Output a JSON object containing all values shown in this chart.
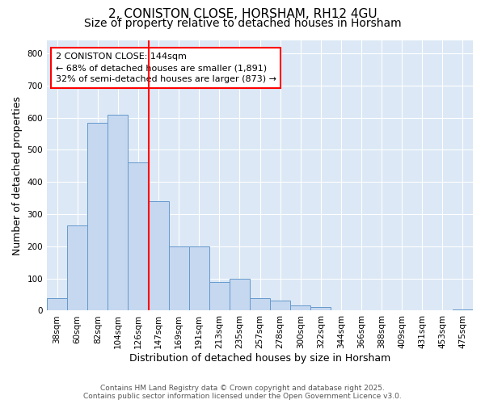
{
  "title_line1": "2, CONISTON CLOSE, HORSHAM, RH12 4GU",
  "title_line2": "Size of property relative to detached houses in Horsham",
  "xlabel": "Distribution of detached houses by size in Horsham",
  "ylabel": "Number of detached properties",
  "categories": [
    "38sqm",
    "60sqm",
    "82sqm",
    "104sqm",
    "126sqm",
    "147sqm",
    "169sqm",
    "191sqm",
    "213sqm",
    "235sqm",
    "257sqm",
    "278sqm",
    "300sqm",
    "322sqm",
    "344sqm",
    "366sqm",
    "388sqm",
    "409sqm",
    "431sqm",
    "453sqm",
    "475sqm"
  ],
  "values": [
    38,
    265,
    585,
    610,
    460,
    340,
    200,
    200,
    90,
    100,
    38,
    32,
    15,
    10,
    0,
    0,
    0,
    0,
    0,
    0,
    3
  ],
  "bar_color": "#c5d8f0",
  "bar_edge_color": "#6699cc",
  "vline_x_index": 5,
  "vline_color": "red",
  "annotation_text": "2 CONISTON CLOSE: 144sqm\n← 68% of detached houses are smaller (1,891)\n32% of semi-detached houses are larger (873) →",
  "annotation_box_color": "white",
  "annotation_box_edge_color": "red",
  "ylim": [
    0,
    840
  ],
  "yticks": [
    0,
    100,
    200,
    300,
    400,
    500,
    600,
    700,
    800
  ],
  "figure_background_color": "#ffffff",
  "plot_background_color": "#dce8f5",
  "grid_color": "#ffffff",
  "footer_text": "Contains HM Land Registry data © Crown copyright and database right 2025.\nContains public sector information licensed under the Open Government Licence v3.0.",
  "title_fontsize": 11,
  "subtitle_fontsize": 10,
  "tick_fontsize": 7.5,
  "label_fontsize": 9,
  "annotation_fontsize": 8,
  "footer_fontsize": 6.5
}
